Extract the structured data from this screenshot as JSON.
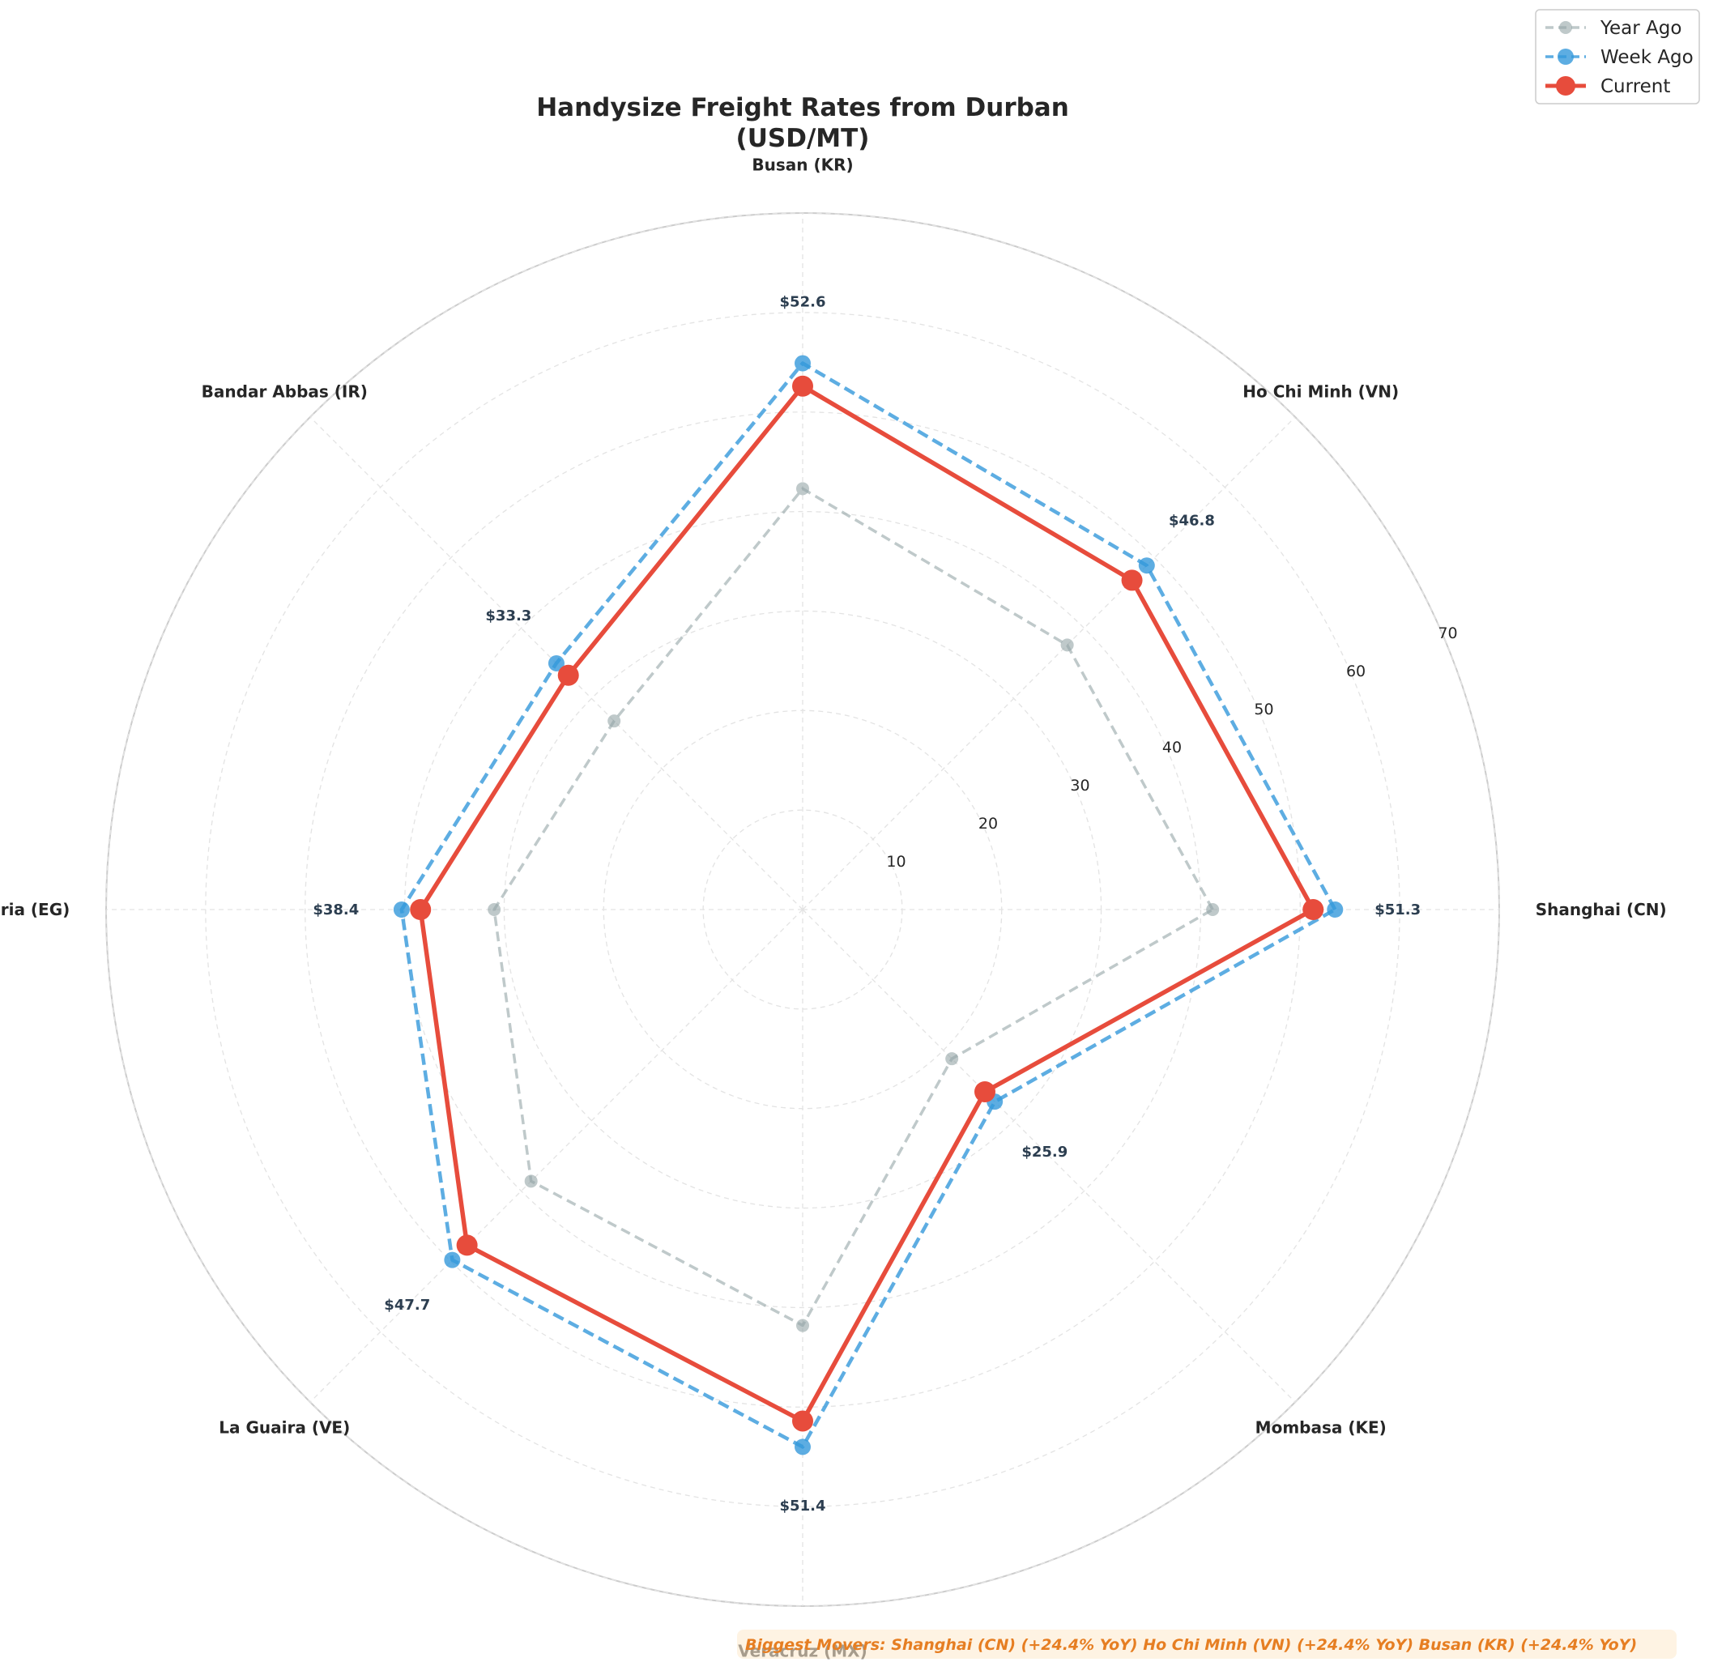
{
  "chart_data": {
    "type": "radar",
    "title_lines": [
      "Handysize Freight Rates from Durban",
      "(USD/MT)"
    ],
    "axes": [
      "Shanghai (CN)",
      "Ho Chi Minh (VN)",
      "Busan (KR)",
      "Bandar Abbas (IR)",
      "Alexandria (EG)",
      "La Guaira (VE)",
      "Veracruz (MX)",
      "Mombasa (KE)"
    ],
    "radial_ticks": [
      "10",
      "20",
      "30",
      "40",
      "50",
      "60",
      "70"
    ],
    "rlim": [
      0,
      70
    ],
    "grid": true,
    "series": [
      {
        "name": "Year Ago",
        "color": "#95a5a6",
        "line_style": "dashed",
        "values": [
          41.2,
          37.6,
          42.3,
          26.8,
          31.0,
          38.6,
          41.8,
          21.2
        ]
      },
      {
        "name": "Week Ago",
        "color": "#3498db",
        "line_style": "dashed",
        "values": [
          53.5,
          48.9,
          54.9,
          35.0,
          40.3,
          49.8,
          54.0,
          27.3
        ]
      },
      {
        "name": "Current",
        "color": "#e74c3c",
        "line_style": "solid",
        "values": [
          51.3,
          46.8,
          52.6,
          33.3,
          38.4,
          47.7,
          51.4,
          25.9
        ]
      }
    ],
    "value_labels": [
      "$51.3",
      "$46.8",
      "$52.6",
      "$33.3",
      "$38.4",
      "$47.7",
      "$51.4",
      "$25.9"
    ],
    "legend_position": "top-right",
    "annotation": "Biggest Movers: Shanghai (CN) (+24.4% YoY)  Ho Chi Minh (VN) (+24.4% YoY)  Busan (KR) (+24.4% YoY)"
  }
}
